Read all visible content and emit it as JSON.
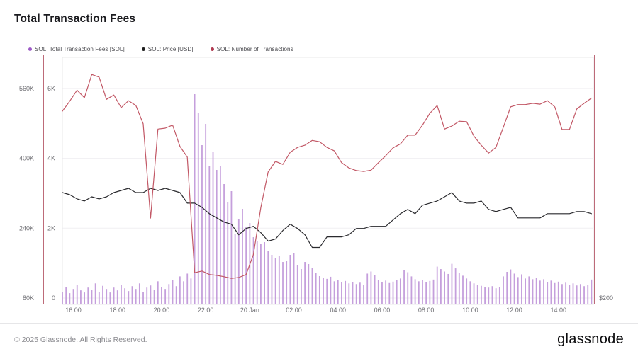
{
  "title": "Total Transaction Fees",
  "legend": [
    {
      "label": "SOL: Total Transaction Fees [SOL]",
      "color": "#9c59c6"
    },
    {
      "label": "SOL: Price [USD]",
      "color": "#1f1f1f"
    },
    {
      "label": "SOL: Number of Transactions",
      "color": "#b03a50"
    }
  ],
  "footer": {
    "copyright": "© 2025 Glassnode. All Rights Reserved.",
    "brand": "glassnode"
  },
  "chart_data": {
    "type": "bar",
    "title": "Total Transaction Fees",
    "x_axis": {
      "unit": "time",
      "ticks": [
        {
          "h": 0.5,
          "label": "16:00"
        },
        {
          "h": 2.5,
          "label": "18:00"
        },
        {
          "h": 4.5,
          "label": "20:00"
        },
        {
          "h": 6.5,
          "label": "22:00"
        },
        {
          "h": 8.5,
          "label": "20 Jan"
        },
        {
          "h": 10.5,
          "label": "02:00"
        },
        {
          "h": 12.5,
          "label": "04:00"
        },
        {
          "h": 14.5,
          "label": "06:00"
        },
        {
          "h": 16.5,
          "label": "08:00"
        },
        {
          "h": 18.5,
          "label": "10:00"
        },
        {
          "h": 20.5,
          "label": "12:00"
        },
        {
          "h": 22.5,
          "label": "14:00"
        }
      ]
    },
    "y_axis_fees": {
      "unit": "SOL",
      "min": 0,
      "max": 6900,
      "ticks": [
        {
          "value": 6000,
          "label": "6K"
        },
        {
          "value": 4000,
          "label": "4K"
        },
        {
          "value": 2000,
          "label": "2K"
        },
        {
          "value": 0,
          "label": "0"
        }
      ]
    },
    "y_axis_tx": {
      "unit": "transactions (thousands)",
      "min": 80,
      "max": 640,
      "ticks": [
        {
          "value": 560,
          "label": "560K"
        },
        {
          "value": 400,
          "label": "400K"
        },
        {
          "value": 240,
          "label": "240K"
        },
        {
          "value": 80,
          "label": "80K"
        }
      ]
    },
    "y_axis_price": {
      "unit": "USD",
      "ticks": [
        {
          "value": 200,
          "label": "$200"
        }
      ]
    },
    "series": [
      {
        "name": "SOL: Total Transaction Fees [SOL]",
        "type": "bar",
        "axis": "fees",
        "color": "#bb8fd6",
        "dt_hours": 0.16667,
        "values": [
          180,
          320,
          140,
          260,
          380,
          220,
          160,
          300,
          240,
          420,
          180,
          350,
          260,
          160,
          300,
          220,
          380,
          280,
          200,
          340,
          260,
          420,
          180,
          300,
          360,
          240,
          480,
          320,
          260,
          400,
          520,
          340,
          620,
          480,
          700,
          560,
          5836,
          5290,
          4377,
          4985,
          3769,
          4174,
          3667,
          3769,
          3262,
          2756,
          3060,
          1844,
          2249,
          2553,
          2047,
          2148,
          1742,
          1641,
          1540,
          1601,
          1337,
          1236,
          1135,
          1196,
          1033,
          1074,
          1236,
          1277,
          932,
          831,
          1033,
          973,
          871,
          729,
          628,
          588,
          550,
          610,
          480,
          520,
          450,
          490,
          420,
          460,
          400,
          440,
          380,
          700,
          760,
          650,
          520,
          460,
          500,
          430,
          470,
          520,
          560,
          800,
          740,
          620,
          540,
          480,
          520,
          450,
          490,
          530,
          900,
          830,
          760,
          690,
          980,
          850,
          720,
          640,
          560,
          480,
          420,
          380,
          350,
          320,
          300,
          340,
          280,
          320,
          620,
          750,
          820,
          700,
          600,
          680,
          560,
          620,
          540,
          580,
          500,
          540,
          460,
          500,
          430,
          470,
          400,
          440,
          380,
          420,
          360,
          400,
          340,
          380,
          530
        ]
      },
      {
        "name": "SOL: Price [USD]",
        "type": "line",
        "axis": "price",
        "color": "#2a2a2e",
        "dt_hours": 0.33333,
        "values": [
          250,
          249,
          247,
          246,
          248,
          247,
          248,
          250,
          251,
          252,
          250,
          250,
          252,
          251,
          252,
          251,
          250,
          245,
          245,
          243,
          240,
          238,
          236,
          235,
          230,
          233,
          234,
          231,
          227,
          228,
          232,
          235,
          233,
          230,
          224,
          224,
          229,
          229,
          229,
          230,
          233,
          233,
          234,
          234,
          234,
          237,
          240,
          242,
          240,
          244,
          245,
          246,
          248,
          250,
          246,
          245,
          245,
          246,
          242,
          241,
          242,
          243,
          238,
          238,
          238,
          238,
          240,
          240,
          240,
          240,
          241,
          241,
          240
        ]
      },
      {
        "name": "SOL: Number of Transactions",
        "type": "line",
        "axis": "tx",
        "color": "#c25866",
        "dt_hours": 0.33333,
        "values": [
          508,
          531,
          556,
          539,
          592,
          586,
          535,
          545,
          516,
          532,
          521,
          479,
          263,
          467,
          469,
          476,
          427,
          403,
          138,
          142,
          134,
          132,
          129,
          125,
          127,
          134,
          180,
          287,
          369,
          393,
          386,
          414,
          425,
          430,
          441,
          438,
          425,
          417,
          390,
          378,
          372,
          370,
          373,
          390,
          406,
          424,
          433,
          453,
          453,
          476,
          503,
          521,
          467,
          474,
          485,
          484,
          451,
          430,
          412,
          425,
          471,
          518,
          523,
          523,
          526,
          524,
          532,
          518,
          466,
          466,
          513,
          526,
          538
        ]
      }
    ]
  }
}
